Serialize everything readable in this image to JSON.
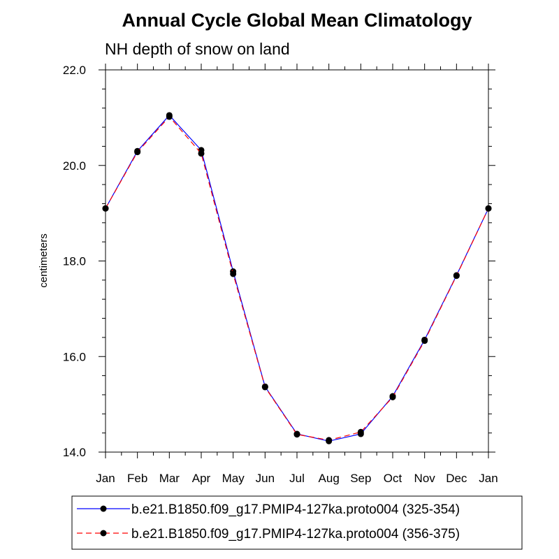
{
  "chart_data": {
    "type": "line",
    "title": "Annual Cycle Global Mean Climatology",
    "subtitle": "NH depth of snow on land",
    "xlabel": "",
    "ylabel": "centimeters",
    "categories": [
      "Jan",
      "Feb",
      "Mar",
      "Apr",
      "May",
      "Jun",
      "Jul",
      "Aug",
      "Sep",
      "Oct",
      "Nov",
      "Dec",
      "Jan"
    ],
    "ylim": [
      14.0,
      22.0
    ],
    "yticks": [
      "14.0",
      "16.0",
      "18.0",
      "20.0",
      "22.0"
    ],
    "legend_position": "bottom",
    "series": [
      {
        "name": "b.e21.B1850.f09_g17.PMIP4-127ka.proto004 (325-354)",
        "color": "#0000ff",
        "style": "solid",
        "values": [
          19.1,
          20.3,
          21.05,
          20.32,
          17.78,
          15.37,
          14.38,
          14.23,
          14.38,
          15.17,
          16.35,
          17.7,
          19.1
        ]
      },
      {
        "name": "b.e21.B1850.f09_g17.PMIP4-127ka.proto004 (356-375)",
        "color": "#ff0000",
        "style": "dashed",
        "values": [
          19.1,
          20.28,
          21.02,
          20.25,
          17.73,
          15.36,
          14.37,
          14.25,
          14.42,
          15.15,
          16.33,
          17.69,
          19.1
        ]
      }
    ]
  }
}
